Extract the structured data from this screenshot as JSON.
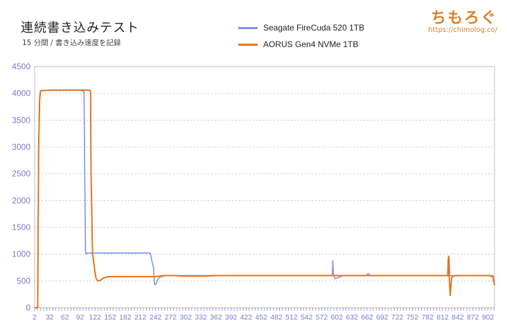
{
  "title": "連続書き込みテスト",
  "subtitle": "15 分間 / 書き込み速度を記録",
  "logo": {
    "text": "ちもろぐ",
    "url": "https://chimolog.co/"
  },
  "colors": {
    "seagate": "#7b96e8",
    "aorus": "#e8731a",
    "axis_text": "#7b7bc8",
    "grid": "#c8c8c8",
    "logo": "#d9822b"
  },
  "chart_data": {
    "type": "line",
    "title": "連続書き込みテスト",
    "subtitle": "15 分間 / 書き込み速度を記録",
    "xlabel": "",
    "ylabel": "",
    "xlim": [
      2,
      915
    ],
    "ylim": [
      0,
      4500
    ],
    "yticks": [
      0,
      500,
      1000,
      1500,
      2000,
      2500,
      3000,
      3500,
      4000,
      4500
    ],
    "xticks": [
      2,
      32,
      62,
      92,
      122,
      152,
      182,
      212,
      242,
      272,
      302,
      332,
      362,
      392,
      422,
      452,
      482,
      512,
      542,
      572,
      602,
      632,
      662,
      692,
      722,
      752,
      782,
      812,
      842,
      872,
      902
    ],
    "grid": true,
    "legend_position": "top",
    "series": [
      {
        "name": "Seagate FireCuda 520 1TB",
        "color": "#7b96e8",
        "points": [
          [
            2,
            0
          ],
          [
            8,
            0
          ],
          [
            10,
            3000
          ],
          [
            12,
            3950
          ],
          [
            14,
            4050
          ],
          [
            30,
            4060
          ],
          [
            60,
            4060
          ],
          [
            90,
            4060
          ],
          [
            100,
            4040
          ],
          [
            101,
            3000
          ],
          [
            103,
            1050
          ],
          [
            104,
            1000
          ],
          [
            106,
            1020
          ],
          [
            140,
            1020
          ],
          [
            180,
            1020
          ],
          [
            230,
            1020
          ],
          [
            232,
            1010
          ],
          [
            234,
            900
          ],
          [
            238,
            750
          ],
          [
            240,
            430
          ],
          [
            243,
            440
          ],
          [
            246,
            520
          ],
          [
            250,
            570
          ],
          [
            256,
            580
          ],
          [
            260,
            600
          ],
          [
            300,
            600
          ],
          [
            400,
            600
          ],
          [
            500,
            600
          ],
          [
            580,
            600
          ],
          [
            593,
            600
          ],
          [
            594,
            880
          ],
          [
            595,
            640
          ],
          [
            598,
            540
          ],
          [
            603,
            560
          ],
          [
            608,
            570
          ],
          [
            612,
            600
          ],
          [
            640,
            600
          ],
          [
            660,
            600
          ],
          [
            664,
            640
          ],
          [
            668,
            600
          ],
          [
            700,
            600
          ],
          [
            800,
            600
          ],
          [
            820,
            600
          ],
          [
            824,
            600
          ],
          [
            825,
            940
          ],
          [
            826,
            600
          ],
          [
            900,
            600
          ],
          [
            912,
            600
          ],
          [
            914,
            480
          ]
        ]
      },
      {
        "name": "AORUS Gen4 NVMe 1TB",
        "color": "#e8731a",
        "points": [
          [
            2,
            0
          ],
          [
            8,
            0
          ],
          [
            10,
            3000
          ],
          [
            12,
            3900
          ],
          [
            14,
            4050
          ],
          [
            40,
            4060
          ],
          [
            80,
            4060
          ],
          [
            110,
            4060
          ],
          [
            113,
            4050
          ],
          [
            114,
            2500
          ],
          [
            117,
            1000
          ],
          [
            120,
            800
          ],
          [
            122,
            650
          ],
          [
            124,
            550
          ],
          [
            127,
            500
          ],
          [
            132,
            510
          ],
          [
            138,
            550
          ],
          [
            144,
            570
          ],
          [
            150,
            580
          ],
          [
            180,
            580
          ],
          [
            200,
            580
          ],
          [
            240,
            580
          ],
          [
            260,
            600
          ],
          [
            280,
            600
          ],
          [
            300,
            590
          ],
          [
            340,
            590
          ],
          [
            360,
            600
          ],
          [
            440,
            600
          ],
          [
            500,
            600
          ],
          [
            560,
            600
          ],
          [
            600,
            600
          ],
          [
            640,
            600
          ],
          [
            680,
            600
          ],
          [
            720,
            600
          ],
          [
            760,
            600
          ],
          [
            800,
            600
          ],
          [
            822,
            600
          ],
          [
            823,
            900
          ],
          [
            824,
            960
          ],
          [
            825,
            600
          ],
          [
            827,
            230
          ],
          [
            830,
            570
          ],
          [
            836,
            600
          ],
          [
            860,
            600
          ],
          [
            890,
            600
          ],
          [
            905,
            600
          ],
          [
            912,
            570
          ],
          [
            915,
            420
          ]
        ]
      }
    ]
  }
}
